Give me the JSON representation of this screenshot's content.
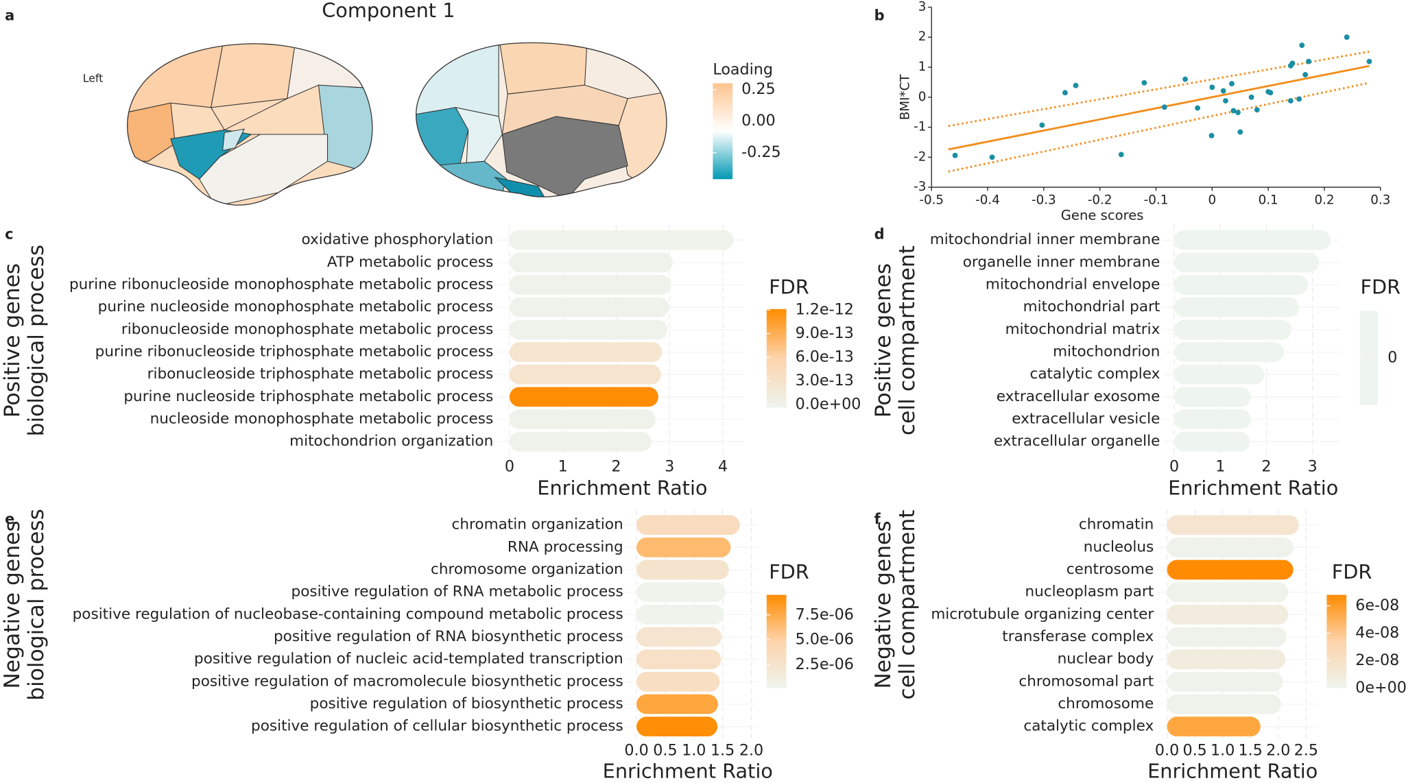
{
  "chart_data": [
    {
      "type": "brain",
      "panel": "a",
      "title": "Component 1",
      "annotation": "Left",
      "legend_title": "Loading",
      "colorscale": [
        "#0099b3",
        "#ffffff",
        "#fdc48e"
      ],
      "cbar_lim": [
        -0.46,
        0.3
      ],
      "cbar_ticks": [
        0.25,
        {
          "value": 0,
          "label": "0.00"
        },
        -0.25
      ]
    },
    {
      "type": "scatter",
      "panel": "b",
      "xlabel": "Gene scores",
      "ylabel": "BMI*CT",
      "x": [
        -0.458,
        -0.392,
        -0.303,
        -0.262,
        -0.243,
        -0.162,
        -0.121,
        -0.085,
        -0.048,
        -0.026,
        -0.001,
        0.0,
        0.02,
        0.024,
        0.035,
        0.038,
        0.046,
        0.05,
        0.07,
        0.08,
        0.1,
        0.104,
        0.14,
        0.14,
        0.143,
        0.155,
        0.16,
        0.166,
        0.172,
        0.24,
        0.28
      ],
      "values": [
        -1.94,
        -2.0,
        -0.93,
        0.15,
        0.39,
        -1.91,
        0.48,
        -0.33,
        0.6,
        -0.36,
        -1.28,
        0.33,
        0.21,
        -0.12,
        0.45,
        -0.45,
        -0.51,
        -1.16,
        0.0,
        -0.42,
        0.18,
        0.15,
        -0.12,
        1.05,
        1.13,
        -0.06,
        1.73,
        0.75,
        1.19,
        2.0,
        1.19
      ],
      "color": "#1a8fa3",
      "fit": {
        "x": [
          -0.47,
          0.28
        ],
        "values": [
          -1.74,
          1.04
        ],
        "color": "#f28e1c"
      },
      "ci_upper": {
        "x": [
          -0.47,
          0.28
        ],
        "values": [
          -0.96,
          1.52
        ]
      },
      "ci_lower": {
        "x": [
          -0.47,
          0.28
        ],
        "values": [
          -2.48,
          0.48
        ]
      },
      "xlim": [
        -0.5,
        0.3
      ],
      "xticks": [
        -0.5,
        -0.4,
        -0.3,
        -0.2,
        -0.1,
        0,
        0.1,
        0.2,
        0.3
      ],
      "ylim": [
        -3,
        3
      ],
      "yticks": [
        -3,
        -2,
        -1,
        0,
        1,
        2,
        3
      ]
    },
    {
      "type": "barh",
      "panel": "c",
      "ylabel": [
        "Positive genes",
        "biological process"
      ],
      "xlabel": "Enrichment Ratio",
      "legend_title": "FDR",
      "categories": [
        "oxidative phosphorylation",
        "ATP metabolic process",
        "purine ribonucleoside monophosphate metabolic process",
        "purine nucleoside monophosphate metabolic process",
        "ribonucleoside monophosphate metabolic process",
        "purine ribonucleoside triphosphate metabolic process",
        "ribonucleoside triphosphate metabolic process",
        "purine nucleoside triphosphate metabolic process",
        "nucleoside monophosphate metabolic process",
        "mitochondrion organization"
      ],
      "values": [
        4.2,
        3.06,
        3.03,
        2.99,
        2.96,
        2.86,
        2.84,
        2.79,
        2.74,
        2.66
      ],
      "fdr": [
        0,
        0,
        0,
        0,
        0,
        2.5e-13,
        2.5e-13,
        1.2e-12,
        0,
        0
      ],
      "xlim": [
        -0.22,
        4.4
      ],
      "xticks": [
        0,
        1,
        2,
        3,
        4
      ],
      "fdr_lim": [
        -4e-14,
        1.21e-12
      ],
      "fdr_ticks": [
        {
          "value": 1.2e-12,
          "label": "1.2e-12"
        },
        {
          "value": 9e-13,
          "label": "9.0e-13"
        },
        {
          "value": 6e-13,
          "label": "6.0e-13"
        },
        {
          "value": 3e-13,
          "label": "3.0e-13"
        },
        {
          "value": 0,
          "label": "0.0e+00"
        }
      ],
      "colorscale": [
        "#eef4ee",
        "#fdd3ab",
        "#ff8c00"
      ]
    },
    {
      "type": "barh",
      "panel": "d",
      "ylabel": [
        "Positive genes",
        "cell compartment"
      ],
      "xlabel": "Enrichment Ratio",
      "legend_title": "FDR",
      "categories": [
        "mitochondrial inner membrane",
        "organelle inner membrane",
        "mitochondrial envelope",
        "mitochondrial part",
        "mitochondrial matrix",
        "mitochondrion",
        "catalytic complex",
        "extracellular exosome",
        "extracellular vesicle",
        "extracellular organelle"
      ],
      "values": [
        3.39,
        3.14,
        2.9,
        2.71,
        2.55,
        2.38,
        1.95,
        1.66,
        1.66,
        1.64
      ],
      "fdr": [
        0,
        0,
        0,
        0,
        0,
        0,
        0,
        0,
        0,
        0
      ],
      "xlim": [
        -0.25,
        3.6
      ],
      "xticks": [
        0,
        1,
        2,
        3
      ],
      "fdr_lim": [
        0,
        0
      ],
      "fdr_ticks": [
        0
      ],
      "colorscale": [
        "#eef4ee",
        "#fdd3ab",
        "#ff8c00"
      ]
    },
    {
      "type": "barh",
      "panel": "e",
      "ylabel": [
        "Negative genes",
        "biological process"
      ],
      "xlabel": "Enrichment Ratio",
      "legend_title": "FDR",
      "categories": [
        "chromatin organization",
        "RNA processing",
        "chromosome organization",
        "positive regulation of RNA metabolic process",
        "positive regulation of nucleobase-containing compound metabolic process",
        "positive regulation of RNA biosynthetic process",
        "positive regulation of nucleic acid-templated transcription",
        "positive regulation of macromolecule biosynthetic process",
        "positive regulation of biosynthetic process",
        "positive regulation of cellular biosynthetic process"
      ],
      "values": [
        1.8,
        1.64,
        1.61,
        1.55,
        1.52,
        1.48,
        1.47,
        1.45,
        1.42,
        1.41
      ],
      "fdr": [
        3.5e-06,
        6.5e-06,
        2.5e-06,
        3e-07,
        3e-07,
        2.3e-06,
        3e-06,
        3.2e-06,
        7.8e-06,
        9.3e-06
      ],
      "xlim": [
        -0.2,
        2.11
      ],
      "xticks": [
        {
          "value": 0,
          "label": "0.0"
        },
        {
          "value": 0.5,
          "label": "0.5"
        },
        {
          "value": 1,
          "label": "1.0"
        },
        {
          "value": 1.5,
          "label": "1.5"
        },
        {
          "value": 2,
          "label": "2.0"
        }
      ],
      "fdr_lim": [
        1.8e-07,
        9.5e-06
      ],
      "fdr_ticks": [
        {
          "value": 7.5e-06,
          "label": "7.5e-06"
        },
        {
          "value": 5e-06,
          "label": "5.0e-06"
        },
        {
          "value": 2.5e-06,
          "label": "2.5e-06"
        }
      ],
      "colorscale": [
        "#eef4ee",
        "#fdd3ab",
        "#ff8c00"
      ]
    },
    {
      "type": "barh",
      "panel": "f",
      "ylabel": [
        "Negative genes",
        "cell compartment"
      ],
      "xlabel": "Enrichment Ratio",
      "legend_title": "FDR",
      "categories": [
        "chromatin",
        "nucleolus",
        "centrosome",
        "nucleoplasm part",
        "microtubule organizing center",
        "transferase complex",
        "nuclear body",
        "chromosomal part",
        "chromosome",
        "catalytic complex"
      ],
      "values": [
        2.37,
        2.27,
        2.27,
        2.18,
        2.18,
        2.15,
        2.13,
        2.08,
        2.05,
        1.68
      ],
      "fdr": [
        1.5e-08,
        2e-09,
        6.8e-08,
        2e-09,
        8e-09,
        2e-09,
        8e-09,
        2e-09,
        2e-09,
        5.5e-08
      ],
      "xlim": [
        -0.19,
        2.71
      ],
      "xticks": [
        {
          "value": 0,
          "label": "0.0"
        },
        {
          "value": 0.5,
          "label": "0.5"
        },
        {
          "value": 1,
          "label": "1.0"
        },
        {
          "value": 1.5,
          "label": "1.5"
        },
        {
          "value": 2,
          "label": "2.0"
        },
        {
          "value": 2.5,
          "label": "2.5"
        }
      ],
      "fdr_lim": [
        0,
        6.8e-08
      ],
      "fdr_ticks": [
        {
          "value": 6e-08,
          "label": "6e-08"
        },
        {
          "value": 4e-08,
          "label": "4e-08"
        },
        {
          "value": 2e-08,
          "label": "2e-08"
        },
        {
          "value": 0,
          "label": "0e+00"
        }
      ],
      "colorscale": [
        "#eef4ee",
        "#fdd3ab",
        "#ff8c00"
      ]
    }
  ]
}
